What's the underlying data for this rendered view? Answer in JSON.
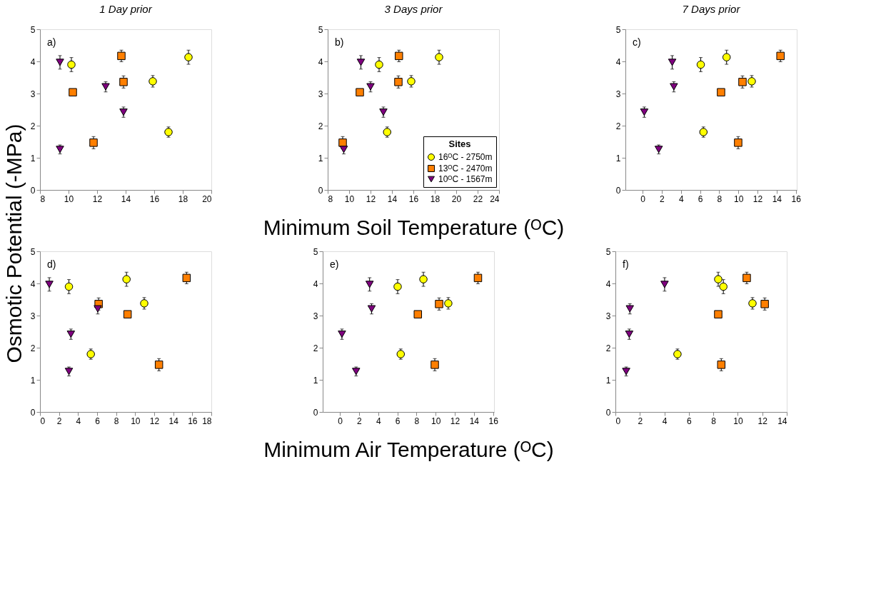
{
  "chart_data": [
    {
      "type": "scatter",
      "title": "1 Day prior",
      "ylabel": "Osmotic Potential (-MPa)",
      "annotations": [
        "a)"
      ],
      "xlim": [
        8,
        20
      ],
      "xticks": [
        8,
        10,
        12,
        14,
        16,
        18,
        20
      ],
      "ylim": [
        0,
        5
      ],
      "yticks": [
        0,
        1,
        2,
        3,
        4,
        5
      ],
      "grid": false,
      "legend": false,
      "series": [
        {
          "color": "#ffff00",
          "marker": "circle",
          "x": [
            10.2,
            18.4,
            15.9,
            17.0
          ],
          "values": [
            3.9,
            4.13,
            3.38,
            1.8
          ],
          "errors": [
            0.22,
            0.22,
            0.18,
            0.16
          ]
        },
        {
          "color": "#ff7f00",
          "marker": "square",
          "x": [
            13.7,
            13.85,
            10.3,
            11.75
          ],
          "values": [
            4.17,
            3.36,
            3.04,
            1.47
          ],
          "errors": [
            0.18,
            0.19,
            0.1,
            0.19
          ]
        },
        {
          "color": "#7f007f",
          "marker": "triangle",
          "x": [
            9.4,
            12.6,
            13.85,
            9.4
          ],
          "values": [
            3.97,
            3.21,
            2.42,
            1.26
          ],
          "errors": [
            0.21,
            0.16,
            0.16,
            0.14
          ]
        }
      ]
    },
    {
      "type": "scatter",
      "title": "3 Days prior",
      "xlabel": "Minimum Soil Temperature (ᴼC)",
      "annotations": [
        "b)"
      ],
      "xlim": [
        8,
        24
      ],
      "xticks": [
        8,
        10,
        12,
        14,
        16,
        18,
        20,
        22,
        24
      ],
      "ylim": [
        0,
        5
      ],
      "yticks": [
        0,
        1,
        2,
        3,
        4,
        5
      ],
      "grid": false,
      "legend": "bottom right",
      "legend_title": "Sites",
      "series": [
        {
          "name": "16ᴼC - 2750m",
          "color": "#ffff00",
          "marker": "circle",
          "x": [
            12.8,
            18.4,
            15.8,
            13.55
          ],
          "values": [
            3.9,
            4.13,
            3.38,
            1.8
          ],
          "errors": [
            0.22,
            0.22,
            0.18,
            0.16
          ]
        },
        {
          "name": "13ᴼC - 2470m",
          "color": "#ff7f00",
          "marker": "square",
          "x": [
            14.65,
            14.6,
            11.0,
            9.4
          ],
          "values": [
            4.17,
            3.36,
            3.04,
            1.47
          ],
          "errors": [
            0.18,
            0.19,
            0.1,
            0.19
          ]
        },
        {
          "name": "10ᴼC - 1567m",
          "color": "#7f007f",
          "marker": "triangle",
          "x": [
            11.1,
            12.0,
            13.2,
            9.5
          ],
          "values": [
            3.97,
            3.21,
            2.42,
            1.26
          ],
          "errors": [
            0.21,
            0.16,
            0.16,
            0.14
          ]
        }
      ]
    },
    {
      "type": "scatter",
      "title": "7 Days prior",
      "annotations": [
        "c)"
      ],
      "xlim": [
        -1.8,
        16.1
      ],
      "xticks": [
        0,
        2,
        4,
        6,
        8,
        10,
        12,
        14,
        16
      ],
      "ylim": [
        0,
        5
      ],
      "yticks": [
        0,
        1,
        2,
        3,
        4,
        5
      ],
      "grid": false,
      "legend": false,
      "series": [
        {
          "color": "#ffff00",
          "marker": "circle",
          "x": [
            6.07,
            8.77,
            11.4,
            6.35
          ],
          "values": [
            3.9,
            4.13,
            3.38,
            1.8
          ],
          "errors": [
            0.22,
            0.22,
            0.18,
            0.16
          ]
        },
        {
          "color": "#ff7f00",
          "marker": "square",
          "x": [
            14.4,
            10.43,
            8.19,
            9.98
          ],
          "values": [
            4.17,
            3.36,
            3.04,
            1.47
          ],
          "errors": [
            0.18,
            0.19,
            0.1,
            0.19
          ]
        },
        {
          "color": "#7f007f",
          "marker": "triangle",
          "x": [
            3.09,
            3.26,
            0.17,
            1.68
          ],
          "values": [
            3.97,
            3.21,
            2.42,
            1.26
          ],
          "errors": [
            0.21,
            0.16,
            0.16,
            0.14
          ]
        }
      ]
    },
    {
      "type": "scatter",
      "annotations": [
        "d)"
      ],
      "xlim": [
        0,
        18
      ],
      "xticks": [
        0,
        2,
        4,
        6,
        8,
        10,
        12,
        14,
        16,
        18
      ],
      "ylim": [
        0,
        5
      ],
      "yticks": [
        0,
        1,
        2,
        3,
        4,
        5
      ],
      "grid": false,
      "legend": false,
      "series": [
        {
          "color": "#ffff00",
          "marker": "circle",
          "x": [
            3.04,
            9.09,
            10.95,
            5.34
          ],
          "values": [
            3.9,
            4.13,
            3.38,
            1.8
          ],
          "errors": [
            0.22,
            0.22,
            0.18,
            0.16
          ]
        },
        {
          "color": "#ff7f00",
          "marker": "square",
          "x": [
            15.4,
            6.16,
            9.2,
            12.5
          ],
          "values": [
            4.17,
            3.36,
            3.04,
            1.47
          ],
          "errors": [
            0.18,
            0.19,
            0.1,
            0.19
          ]
        },
        {
          "color": "#7f007f",
          "marker": "triangle",
          "x": [
            0.98,
            6.07,
            3.25,
            3.04
          ],
          "values": [
            3.97,
            3.21,
            2.42,
            1.26
          ],
          "errors": [
            0.21,
            0.16,
            0.16,
            0.14
          ]
        }
      ]
    },
    {
      "type": "scatter",
      "xlabel": "Minimum Air Temperature (ᴼC)",
      "annotations": [
        "e)"
      ],
      "xlim": [
        -1.8,
        16.1
      ],
      "xticks": [
        0,
        2,
        4,
        6,
        8,
        10,
        12,
        14,
        16
      ],
      "ylim": [
        0,
        5
      ],
      "yticks": [
        0,
        1,
        2,
        3,
        4,
        5
      ],
      "grid": false,
      "legend": false,
      "series": [
        {
          "color": "#ffff00",
          "marker": "circle",
          "x": [
            6.03,
            8.72,
            11.32,
            6.35
          ],
          "values": [
            3.9,
            4.13,
            3.38,
            1.8
          ],
          "errors": [
            0.22,
            0.22,
            0.18,
            0.16
          ]
        },
        {
          "color": "#ff7f00",
          "marker": "square",
          "x": [
            14.42,
            10.36,
            8.14,
            9.91
          ],
          "values": [
            4.17,
            3.36,
            3.04,
            1.47
          ],
          "errors": [
            0.18,
            0.19,
            0.1,
            0.19
          ]
        },
        {
          "color": "#7f007f",
          "marker": "triangle",
          "x": [
            3.1,
            3.31,
            0.21,
            1.69
          ],
          "values": [
            3.97,
            3.21,
            2.42,
            1.26
          ],
          "errors": [
            0.21,
            0.16,
            0.16,
            0.14
          ]
        }
      ]
    },
    {
      "type": "scatter",
      "annotations": [
        "f)"
      ],
      "xlim": [
        0,
        14
      ],
      "xticks": [
        0,
        2,
        4,
        6,
        8,
        10,
        12,
        14
      ],
      "ylim": [
        0,
        5
      ],
      "yticks": [
        0,
        1,
        2,
        3,
        4,
        5
      ],
      "grid": false,
      "legend": false,
      "series": [
        {
          "color": "#ffff00",
          "marker": "circle",
          "x": [
            8.4,
            8.82,
            11.2,
            5.07
          ],
          "values": [
            4.13,
            3.9,
            3.38,
            1.8
          ],
          "errors": [
            0.22,
            0.22,
            0.18,
            0.16
          ]
        },
        {
          "color": "#ff7f00",
          "marker": "square",
          "x": [
            10.73,
            12.2,
            8.4,
            8.65
          ],
          "values": [
            4.17,
            3.36,
            3.04,
            1.47
          ],
          "errors": [
            0.18,
            0.19,
            0.1,
            0.19
          ]
        },
        {
          "color": "#7f007f",
          "marker": "triangle",
          "x": [
            4.02,
            1.18,
            1.13,
            0.88
          ],
          "values": [
            3.97,
            3.21,
            2.42,
            1.26
          ],
          "errors": [
            0.21,
            0.16,
            0.16,
            0.14
          ]
        }
      ]
    }
  ]
}
